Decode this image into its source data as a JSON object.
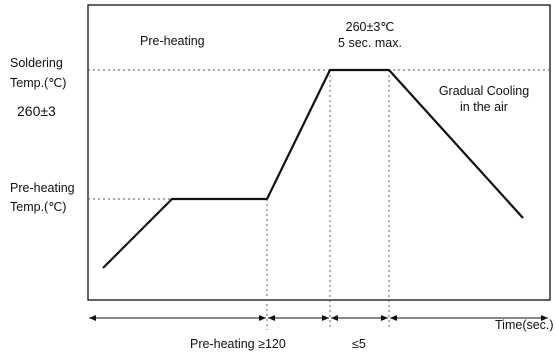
{
  "labels": {
    "preheating_region": "Pre-heating",
    "peak_line1": "260±3℃",
    "peak_line2": "5 sec. max.",
    "soldering_line1": "Soldering",
    "soldering_line2": "Temp.(℃)",
    "soldering_value": "260±3",
    "cooling_line1": "Gradual Cooling",
    "cooling_line2": "in the air",
    "preheat_temp_line1": "Pre-heating",
    "preheat_temp_line2": "Temp.(℃)",
    "time_axis": "Time(sec.)",
    "preheat_duration": "Pre-heating ≥120",
    "peak_duration": "≤5"
  },
  "profile": {
    "segments": [
      "ramp-up",
      "pre-heating soak",
      "ramp to soldering",
      "soldering peak",
      "gradual cooling"
    ],
    "soldering_temperature": "260±3 ℃",
    "peak_hold": "5 sec. max.",
    "preheating_time": "≥120 sec.",
    "peak_time": "≤5 sec."
  },
  "colors": {
    "line": "#111111",
    "dashed": "#555555",
    "background": "#ffffff"
  }
}
